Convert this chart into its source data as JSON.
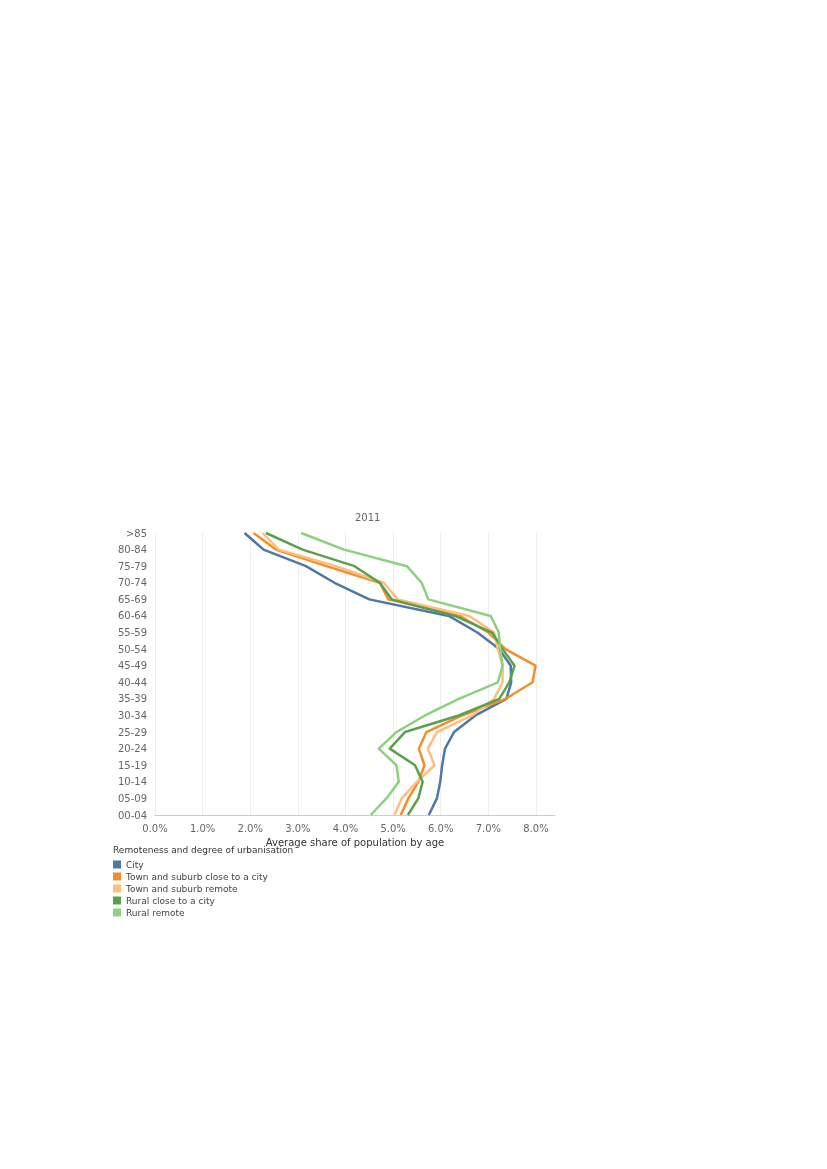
{
  "chart_data": {
    "type": "line",
    "orientation": "horizontal",
    "title": "2011",
    "xlabel": "Average share of population by age",
    "legend_title": "Remoteness and degree of urbanisation",
    "categories": [
      ">85",
      "80-84",
      "75-79",
      "70-74",
      "65-69",
      "60-64",
      "55-59",
      "50-54",
      "45-49",
      "40-44",
      "35-39",
      "30-34",
      "25-29",
      "20-24",
      "15-19",
      "10-14",
      "05-09",
      "00-04"
    ],
    "series": [
      {
        "name": "City",
        "color": "#4e79a7",
        "values": [
          1.88,
          2.28,
          3.17,
          3.77,
          4.5,
          6.17,
          6.77,
          7.23,
          7.47,
          7.48,
          7.38,
          6.73,
          6.28,
          6.09,
          6.03,
          5.99,
          5.92,
          5.75
        ]
      },
      {
        "name": "Town and suburb close to a city",
        "color": "#f28e2b",
        "values": [
          2.07,
          2.54,
          3.6,
          4.72,
          4.9,
          6.4,
          7.0,
          7.36,
          7.99,
          7.93,
          7.36,
          6.45,
          5.7,
          5.54,
          5.66,
          5.53,
          5.32,
          5.16
        ]
      },
      {
        "name": "Town and suburb remote",
        "color": "#ffbe7d",
        "values": [
          2.26,
          2.6,
          3.8,
          4.8,
          5.1,
          6.6,
          7.12,
          7.2,
          7.3,
          7.3,
          7.12,
          6.66,
          5.92,
          5.73,
          5.87,
          5.5,
          5.18,
          5.03
        ]
      },
      {
        "name": "Rural close to a city",
        "color": "#59a14f",
        "values": [
          2.33,
          3.1,
          4.19,
          4.72,
          4.97,
          6.3,
          7.08,
          7.3,
          7.55,
          7.44,
          7.23,
          6.38,
          5.25,
          4.93,
          5.46,
          5.62,
          5.53,
          5.31
        ]
      },
      {
        "name": "Rural remote",
        "color": "#8cd17d",
        "values": [
          3.07,
          3.97,
          5.29,
          5.6,
          5.74,
          7.05,
          7.22,
          7.25,
          7.3,
          7.2,
          6.38,
          5.67,
          5.07,
          4.7,
          5.07,
          5.12,
          4.86,
          4.53
        ]
      }
    ],
    "xlim": [
      0,
      8.4
    ],
    "xticks": [
      {
        "value": 0,
        "label": "0.0%"
      },
      {
        "value": 1,
        "label": "1.0%"
      },
      {
        "value": 2,
        "label": "2.0%"
      },
      {
        "value": 3,
        "label": "3.0%"
      },
      {
        "value": 4,
        "label": "4.0%"
      },
      {
        "value": 5,
        "label": "5.0%"
      },
      {
        "value": 6,
        "label": "6.0%"
      },
      {
        "value": 7,
        "label": "7.0%"
      },
      {
        "value": 8,
        "label": "8.0%"
      }
    ],
    "grid": "x",
    "legend": "bottom left",
    "marker": "none",
    "line_style": "solid"
  }
}
